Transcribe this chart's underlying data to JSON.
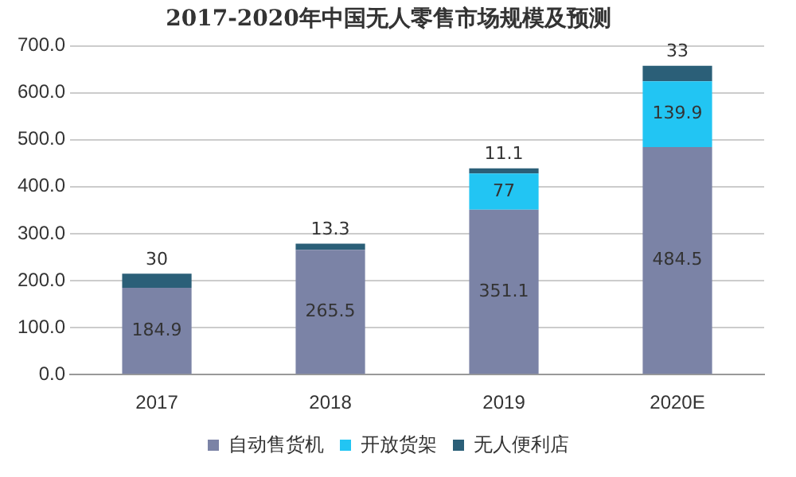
{
  "chart_data": {
    "type": "bar",
    "title": "2017-2020年中国无人零售市场规模及预测",
    "categories": [
      "2017",
      "2018",
      "2019",
      "2020E"
    ],
    "stacked": true,
    "series": [
      {
        "name": "自动售货机",
        "color": "#7b83a6",
        "values": [
          184.9,
          265.5,
          351.1,
          484.5
        ]
      },
      {
        "name": "开放货架",
        "color": "#22c5f3",
        "values": [
          null,
          null,
          77,
          139.9
        ]
      },
      {
        "name": "无人便利店",
        "color": "#2b5f78",
        "values": [
          30,
          13.3,
          11.1,
          33
        ]
      }
    ],
    "ylim": [
      0,
      700
    ],
    "yticks": [
      {
        "value": 0,
        "label": "0.0"
      },
      {
        "value": 100,
        "label": "100.0"
      },
      {
        "value": 200,
        "label": "200.0"
      },
      {
        "value": 300,
        "label": "300.0"
      },
      {
        "value": 400,
        "label": "400.0"
      },
      {
        "value": 500,
        "label": "500.0"
      },
      {
        "value": 600,
        "label": "600.0"
      },
      {
        "value": 700,
        "label": "700.0"
      }
    ],
    "grid": "y",
    "legend": "bottom",
    "data_labels": true
  }
}
